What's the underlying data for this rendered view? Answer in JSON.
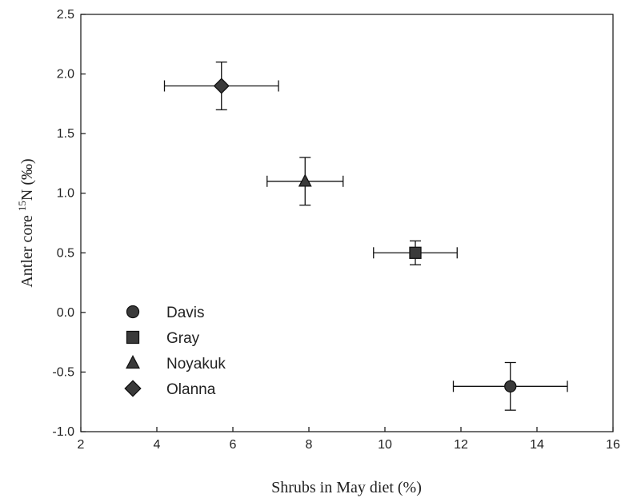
{
  "chart_data": {
    "type": "scatter",
    "xlabel": "Shrubs in May diet (%)",
    "ylabel_prefix": "Antler core ",
    "ylabel_superscript": "15",
    "ylabel_suffix": "N (‰)",
    "xlim": [
      2,
      16
    ],
    "ylim": [
      -1.0,
      2.5
    ],
    "xticks": [
      2,
      4,
      6,
      8,
      10,
      12,
      14,
      16
    ],
    "yticks": [
      -1.0,
      -0.5,
      0.0,
      0.5,
      1.0,
      1.5,
      2.0,
      2.5
    ],
    "xtick_labels": [
      "2",
      "4",
      "6",
      "8",
      "10",
      "12",
      "14",
      "16"
    ],
    "ytick_labels": [
      "-1.0",
      "-0.5",
      "0.0",
      "0.5",
      "1.0",
      "1.5",
      "2.0",
      "2.5"
    ],
    "grid": false,
    "legend_position": "bottom-left",
    "series": [
      {
        "name": "Davis",
        "marker": "circle",
        "x": 13.3,
        "y": -0.62,
        "xerr": 1.5,
        "yerr": 0.2
      },
      {
        "name": "Gray",
        "marker": "square",
        "x": 10.8,
        "y": 0.5,
        "xerr": 1.1,
        "yerr": 0.1
      },
      {
        "name": "Noyakuk",
        "marker": "triangle",
        "x": 7.9,
        "y": 1.1,
        "xerr": 1.0,
        "yerr": 0.2
      },
      {
        "name": "Olanna",
        "marker": "diamond",
        "x": 5.7,
        "y": 1.9,
        "xerr": 1.5,
        "yerr": 0.2
      }
    ],
    "marker_fill": "#3a3a3a",
    "marker_stroke": "#111111"
  }
}
